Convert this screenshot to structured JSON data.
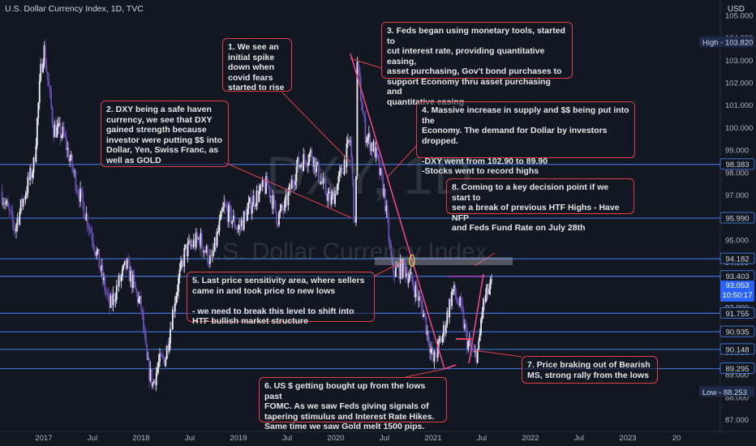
{
  "header": {
    "title": "U.S. Dollar Currency Index, 1D, TVC",
    "currency": "USD"
  },
  "watermark": {
    "symbol": "DXY, 1D",
    "name": "U.S. Dollar Currency Index"
  },
  "chart_data": {
    "type": "candlestick",
    "title": "U.S. Dollar Currency Index, 1D, TVC",
    "y_axis": {
      "ticks": [
        87,
        88,
        89,
        90,
        91,
        92,
        93,
        94,
        95,
        96,
        97,
        98,
        99,
        100,
        101,
        102,
        103,
        104,
        105
      ],
      "tick_labels": [
        "87.000",
        "88.000",
        "89.000",
        "90.000",
        "91.000",
        "92.000",
        "93.000",
        "94.000",
        "95.000",
        "96.000",
        "97.000",
        "98.000",
        "99.000",
        "100.000",
        "101.000",
        "102.000",
        "103.000",
        "104.000",
        "105.000"
      ],
      "range": [
        86.5,
        105.7
      ],
      "side": "right"
    },
    "x_axis": {
      "labels": [
        "2017",
        "Jul",
        "2018",
        "Jul",
        "2019",
        "Jul",
        "2020",
        "Jul",
        "2021",
        "Jul",
        "2022",
        "Jul",
        "2023",
        "20"
      ],
      "positions": [
        2017.0,
        2017.5,
        2018.0,
        2018.5,
        2019.0,
        2019.5,
        2020.0,
        2020.5,
        2021.0,
        2021.5,
        2022.0,
        2022.5,
        2023.0,
        2023.5
      ],
      "range": [
        2016.55,
        2023.95
      ]
    },
    "price_path": [
      [
        2016.56,
        97.2
      ],
      [
        2016.7,
        95.5
      ],
      [
        2016.8,
        97.0
      ],
      [
        2016.9,
        98.4
      ],
      [
        2016.97,
        102.6
      ],
      [
        2017.0,
        103.6
      ],
      [
        2017.1,
        100.0
      ],
      [
        2017.2,
        99.7
      ],
      [
        2017.35,
        97.3
      ],
      [
        2017.5,
        95.2
      ],
      [
        2017.62,
        93.0
      ],
      [
        2017.68,
        92.0
      ],
      [
        2017.75,
        92.9
      ],
      [
        2017.85,
        93.9
      ],
      [
        2018.0,
        92.0
      ],
      [
        2018.06,
        89.5
      ],
      [
        2018.12,
        88.6
      ],
      [
        2018.18,
        89.5
      ],
      [
        2018.25,
        89.8
      ],
      [
        2018.35,
        92.5
      ],
      [
        2018.45,
        94.5
      ],
      [
        2018.6,
        95.1
      ],
      [
        2018.72,
        94.0
      ],
      [
        2018.85,
        96.5
      ],
      [
        2019.0,
        95.5
      ],
      [
        2019.15,
        96.8
      ],
      [
        2019.3,
        97.5
      ],
      [
        2019.4,
        96.0
      ],
      [
        2019.48,
        96.5
      ],
      [
        2019.6,
        98.3
      ],
      [
        2019.75,
        98.9
      ],
      [
        2019.85,
        97.6
      ],
      [
        2019.95,
        96.7
      ],
      [
        2020.05,
        97.9
      ],
      [
        2020.15,
        99.5
      ],
      [
        2020.2,
        95.0
      ],
      [
        2020.22,
        102.8
      ],
      [
        2020.3,
        99.8
      ],
      [
        2020.4,
        99.0
      ],
      [
        2020.5,
        97.0
      ],
      [
        2020.58,
        93.6
      ],
      [
        2020.7,
        93.8
      ],
      [
        2020.8,
        93.0
      ],
      [
        2020.9,
        91.8
      ],
      [
        2021.0,
        89.6
      ],
      [
        2021.1,
        90.8
      ],
      [
        2021.2,
        92.8
      ],
      [
        2021.28,
        92.0
      ],
      [
        2021.35,
        90.5
      ],
      [
        2021.42,
        89.8
      ],
      [
        2021.47,
        90.2
      ],
      [
        2021.5,
        91.9
      ],
      [
        2021.55,
        92.6
      ],
      [
        2021.6,
        93.0
      ]
    ],
    "levels": [
      {
        "price": 98.383,
        "label": "98.383"
      },
      {
        "price": 95.99,
        "label": "95.990"
      },
      {
        "price": 94.182,
        "label": "94.182"
      },
      {
        "price": 93.403,
        "label": "93.403"
      },
      {
        "price": 91.755,
        "label": "91.755"
      },
      {
        "price": 90.935,
        "label": "90.935"
      },
      {
        "price": 90.148,
        "label": "90.148"
      },
      {
        "price": 89.295,
        "label": "89.295"
      }
    ],
    "high": {
      "label": "High",
      "price": 103.82,
      "text": "103.820"
    },
    "low": {
      "label": "Low",
      "price": 88.253,
      "text": "88.253"
    },
    "last_price": {
      "price": 93.053,
      "text": "93.053",
      "countdown": "10:50:17"
    },
    "colors": {
      "up": "#f0f0f0",
      "down": "#6a4fb8",
      "level": "#3f6fd0",
      "annotation": "#e0414a",
      "trend": "#f24a8e"
    }
  },
  "annotations": [
    {
      "text": "1. We see an\ninitial spike\ndown when\ncovid fears\nstarted to rise"
    },
    {
      "text": "2. DXY being a safe haven\ncurrency, we see that DXY\ngained strength because\ninvestor were putting $$ into\nDollar, Yen, Swiss Franc, as\nwell as GOLD"
    },
    {
      "text": "3. Feds began using monetary tools, started to\ncut interest rate, providing quantitative easing,\nasset purchasing, Gov't bond purchases to\nsupport Economy thru asset purchasing and\nquantitative easing"
    },
    {
      "text": "4. Massive increase in supply and $$ being put into the\nEconomy. The demand for Dollar by investors dropped.\n\n-DXY went from 102.90 to 89.90\n-Stocks went to record highs"
    },
    {
      "text": "5. Last price sensitivity area, where sellers\ncame in and took price to new lows\n\n- we need to break this level to shift into\nHTF bullish market structure"
    },
    {
      "text": "6. US $ getting bought up from the lows past\nFOMC. As we saw Feds giving signals of\ntapering stimulus and Interest Rate Hikes.\nSame time we saw Gold melt 1500 pips."
    },
    {
      "text": "7. Price braking out of Bearish\nMS, strong rally from the lows"
    },
    {
      "text": "8. Coming to a key decision point if we start to\nsee a break of previous HTF Highs - Have NFP\nand Feds Fund Rate on July 28th"
    }
  ]
}
